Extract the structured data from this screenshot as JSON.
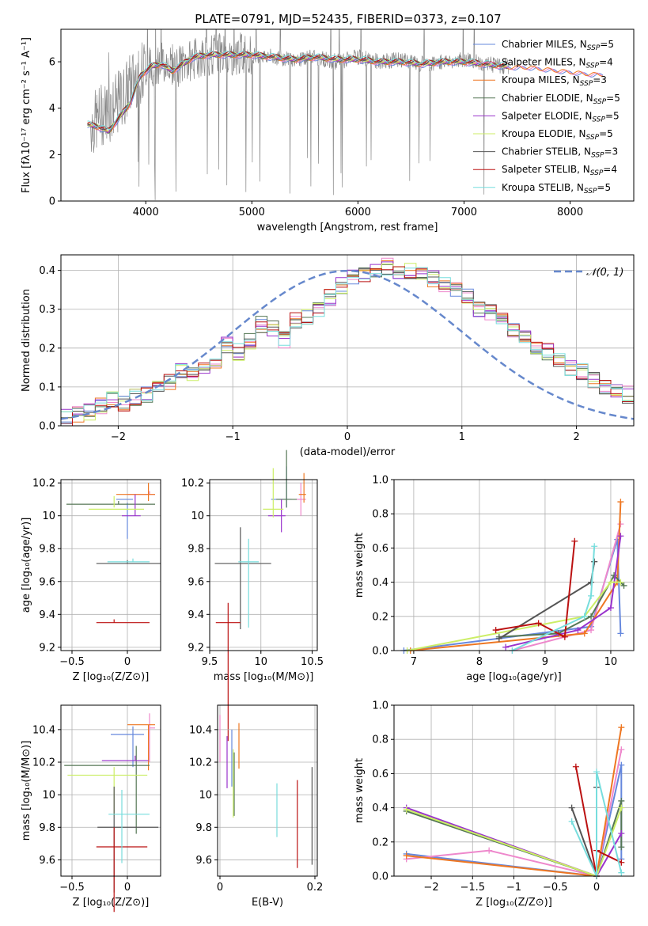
{
  "figure_title": "PLATE=0791, MJD=52435, FIBERID=0373, z=0.107",
  "models": [
    {
      "name": "Chabrier MILES",
      "nssp": "5",
      "color": "#6688dd"
    },
    {
      "name": "Salpeter MILES",
      "nssp": "4",
      "color": "#ee88cc"
    },
    {
      "name": "Kroupa MILES",
      "nssp": "3",
      "color": "#ee7722"
    },
    {
      "name": "Chabrier ELODIE",
      "nssp": "5",
      "color": "#557755"
    },
    {
      "name": "Salpeter ELODIE",
      "nssp": "5",
      "color": "#9933cc"
    },
    {
      "name": "Kroupa ELODIE",
      "nssp": "5",
      "color": "#ccee66"
    },
    {
      "name": "Chabrier STELIB",
      "nssp": "3",
      "color": "#555555"
    },
    {
      "name": "Salpeter STELIB",
      "nssp": "4",
      "color": "#bb1111"
    },
    {
      "name": "Kroupa STELIB",
      "nssp": "5",
      "color": "#77dddd"
    }
  ],
  "chart_data": [
    {
      "id": "spectrum",
      "type": "line",
      "xlabel": "wavelength [Angstrom, rest frame]",
      "ylabel": "Flux [fλ10⁻¹⁷ erg cm⁻² s⁻¹ A⁻¹]",
      "xlim": [
        3200,
        8600
      ],
      "ylim": [
        0,
        7.4
      ],
      "xticks": [
        4000,
        5000,
        6000,
        7000,
        8000
      ],
      "yticks": [
        0,
        2,
        4,
        6
      ],
      "legend": "top-right",
      "observed": {
        "color": "#888888",
        "x": [
          3500,
          3600,
          3700,
          3800,
          3900,
          4000,
          4100,
          4200,
          4300,
          4400,
          4500,
          4600,
          4700,
          4800,
          4900,
          5000,
          5200,
          5400,
          5600,
          5800,
          6000,
          6200,
          6400,
          6600,
          6800,
          7000,
          7200,
          7400,
          7600,
          7800,
          8000,
          8200,
          8300
        ],
        "y": [
          3.3,
          3.8,
          4.0,
          4.6,
          5.4,
          5.7,
          5.9,
          6.0,
          5.8,
          6.0,
          6.2,
          6.3,
          6.4,
          6.2,
          6.4,
          6.3,
          6.2,
          6.1,
          6.2,
          6.0,
          6.2,
          6.0,
          6.1,
          5.9,
          6.0,
          6.1,
          5.9,
          5.8,
          5.8,
          5.7,
          5.6,
          5.5,
          5.5
        ]
      },
      "model_curve": {
        "x": [
          3450,
          3550,
          3650,
          3750,
          3850,
          3950,
          4050,
          4150,
          4250,
          4350,
          4450,
          4600,
          4800,
          5000,
          5200,
          5400,
          5600,
          5800,
          6000,
          6200,
          6400,
          6600,
          6800,
          7000,
          7200,
          7400,
          7600,
          7800,
          8000,
          8200,
          8300
        ],
        "y": [
          3.3,
          3.2,
          3.0,
          3.6,
          4.2,
          5.4,
          5.8,
          5.9,
          5.6,
          5.9,
          6.2,
          6.3,
          6.3,
          6.3,
          6.2,
          6.1,
          6.2,
          6.1,
          6.1,
          6.0,
          6.0,
          5.9,
          6.0,
          6.0,
          5.9,
          5.8,
          5.8,
          5.7,
          5.6,
          5.5,
          5.5
        ]
      }
    },
    {
      "id": "residuals",
      "type": "line",
      "xlabel": "(data-model)/error",
      "ylabel": "Normed distribution",
      "xlim": [
        -2.5,
        2.5
      ],
      "ylim": [
        0,
        0.44
      ],
      "xticks": [
        -2,
        -1,
        0,
        1,
        2
      ],
      "yticks": [
        0.0,
        0.1,
        0.2,
        0.3,
        0.4
      ],
      "legend": "top-right",
      "legend_label": "𝒩(0, 1)",
      "gaussian": {
        "mean": 0,
        "sigma": 1,
        "color": "#6688cc",
        "style": "dashed"
      },
      "histogram": {
        "bin_width": 0.1,
        "start": -2.5,
        "values": [
          0.02,
          0.03,
          0.035,
          0.05,
          0.065,
          0.06,
          0.075,
          0.08,
          0.1,
          0.11,
          0.14,
          0.13,
          0.15,
          0.17,
          0.21,
          0.19,
          0.22,
          0.26,
          0.25,
          0.22,
          0.27,
          0.28,
          0.3,
          0.33,
          0.36,
          0.38,
          0.39,
          0.4,
          0.41,
          0.4,
          0.4,
          0.39,
          0.38,
          0.36,
          0.35,
          0.33,
          0.3,
          0.29,
          0.27,
          0.25,
          0.23,
          0.2,
          0.19,
          0.17,
          0.15,
          0.14,
          0.12,
          0.1,
          0.09,
          0.08
        ]
      }
    },
    {
      "id": "age_vs_Z",
      "type": "scatter",
      "xlabel": "Z [log₁₀(Z/Z⊙)]",
      "ylabel": "age  [log₁₀(age/yr)]",
      "xlim": [
        -0.6,
        0.3
      ],
      "ylim": [
        9.18,
        10.22
      ],
      "xticks": [
        -0.5,
        0.0
      ],
      "yticks": [
        9.2,
        9.4,
        9.6,
        9.8,
        10.0,
        10.2
      ],
      "points": [
        {
          "m": 0,
          "x": 0.0,
          "y": 10.1,
          "xe": [
            -0.1,
            0.0
          ],
          "ye": [
            10.06,
            9.86
          ]
        },
        {
          "m": 1,
          "x": 0.2,
          "y": 10.13,
          "xe": [
            0.0,
            0.0
          ],
          "ye": [
            10.13,
            10.13
          ]
        },
        {
          "m": 2,
          "x": 0.19,
          "y": 10.13,
          "xe": [
            -0.1,
            0.25
          ],
          "ye": [
            10.18,
            10.09
          ]
        },
        {
          "m": 3,
          "x": -0.08,
          "y": 10.07,
          "xe": [
            -0.55,
            0.25
          ],
          "ye": [
            10.07,
            10.07
          ]
        },
        {
          "m": 4,
          "x": 0.07,
          "y": 10.0,
          "xe": [
            -0.05,
            0.0
          ],
          "ye": [
            10.11,
            10.0
          ]
        },
        {
          "m": 5,
          "x": -0.12,
          "y": 10.04,
          "xe": [
            -0.35,
            0.15
          ],
          "ye": [
            10.1,
            10.05
          ]
        },
        {
          "m": 6,
          "x": 0.0,
          "y": 9.71,
          "xe": [
            -0.28,
            0.3
          ],
          "ye": [
            9.71,
            9.71
          ]
        },
        {
          "m": 7,
          "x": -0.12,
          "y": 9.35,
          "xe": [
            -0.28,
            0.2
          ],
          "ye": [
            9.35,
            9.35
          ]
        },
        {
          "m": 8,
          "x": 0.05,
          "y": 9.72,
          "xe": [
            -0.18,
            0.2
          ],
          "ye": [
            9.72,
            9.72
          ]
        }
      ]
    },
    {
      "id": "age_vs_mass",
      "type": "scatter",
      "xlabel": "mass [log₁₀(M/M⊙)]",
      "ylabel": "",
      "xlim": [
        9.5,
        10.55
      ],
      "ylim": [
        9.18,
        10.22
      ],
      "xticks": [
        9.5,
        10.0,
        10.5
      ],
      "yticks": [
        9.2,
        9.4,
        9.6,
        9.8,
        10.0,
        10.2
      ],
      "points": [
        {
          "m": 0,
          "x": 10.25,
          "y": 10.1,
          "xe": [
            0.15,
            0.05
          ],
          "ye": [
            0.05,
            0.2
          ]
        },
        {
          "m": 1,
          "x": 10.39,
          "y": 10.1,
          "xe": [
            0.05,
            0.05
          ],
          "ye": [
            0.1,
            0.1
          ]
        },
        {
          "m": 2,
          "x": 10.42,
          "y": 10.13,
          "xe": [
            0.05,
            0.02
          ],
          "ye": [
            0.05,
            0.13
          ]
        },
        {
          "m": 3,
          "x": 10.25,
          "y": 10.1,
          "xe": [
            0.1,
            0.1
          ],
          "ye": [
            0.05,
            0.3
          ]
        },
        {
          "m": 4,
          "x": 10.2,
          "y": 10.0,
          "xe": [
            0.13,
            0.04
          ],
          "ye": [
            0.1,
            0.1
          ]
        },
        {
          "m": 5,
          "x": 10.12,
          "y": 10.04,
          "xe": [
            0.1,
            0.1
          ],
          "ye": [
            0.05,
            0.25
          ]
        },
        {
          "m": 6,
          "x": 9.8,
          "y": 9.71,
          "xe": [
            0.25,
            0.3
          ],
          "ye": [
            0.4,
            0.22
          ]
        },
        {
          "m": 7,
          "x": 9.68,
          "y": 9.35,
          "xe": [
            0.12,
            0.12
          ],
          "ye": [
            0.72,
            0.12
          ]
        },
        {
          "m": 8,
          "x": 9.88,
          "y": 9.72,
          "xe": [
            0.1,
            0.1
          ],
          "ye": [
            0.4,
            0.14
          ]
        }
      ]
    },
    {
      "id": "weight_vs_age",
      "type": "line",
      "xlabel": "age  [log₁₀(age/yr)]",
      "ylabel": "mass weight",
      "xlim": [
        6.7,
        10.35
      ],
      "ylim": [
        0,
        1.0
      ],
      "xticks": [
        7,
        8,
        9,
        10
      ],
      "yticks": [
        0.0,
        0.2,
        0.4,
        0.6,
        0.8,
        1.0
      ],
      "series": [
        {
          "m": 0,
          "x": [
            6.85,
            9.7,
            10.1,
            10.15
          ],
          "y": [
            0.0,
            0.14,
            0.65,
            0.1
          ]
        },
        {
          "m": 1,
          "x": [
            8.5,
            9.7,
            10.15
          ],
          "y": [
            0.0,
            0.12,
            0.74
          ]
        },
        {
          "m": 2,
          "x": [
            6.95,
            9.6,
            10.1,
            10.15
          ],
          "y": [
            0.0,
            0.1,
            0.4,
            0.87
          ]
        },
        {
          "m": 3,
          "x": [
            8.3,
            9.2,
            9.7,
            10.05,
            10.2
          ],
          "y": [
            0.08,
            0.1,
            0.2,
            0.44,
            0.38
          ]
        },
        {
          "m": 4,
          "x": [
            8.4,
            9.5,
            10.0,
            10.15
          ],
          "y": [
            0.02,
            0.12,
            0.25,
            0.67
          ]
        },
        {
          "m": 5,
          "x": [
            6.9,
            9.6,
            10.0,
            10.15
          ],
          "y": [
            0.0,
            0.2,
            0.4,
            0.4
          ]
        },
        {
          "m": 6,
          "x": [
            8.3,
            9.7,
            9.75
          ],
          "y": [
            0.07,
            0.4,
            0.52
          ]
        },
        {
          "m": 7,
          "x": [
            8.25,
            8.9,
            9.3,
            9.45
          ],
          "y": [
            0.12,
            0.16,
            0.08,
            0.64
          ]
        },
        {
          "m": 8,
          "x": [
            8.5,
            9.6,
            9.7,
            9.75
          ],
          "y": [
            0.0,
            0.2,
            0.32,
            0.61
          ]
        }
      ]
    },
    {
      "id": "mass_vs_Z",
      "type": "scatter",
      "xlabel": "Z [log₁₀(Z/Z⊙)]",
      "ylabel": "mass [log₁₀(M/M⊙)]",
      "xlim": [
        -0.6,
        0.3
      ],
      "ylim": [
        9.5,
        10.55
      ],
      "xticks": [
        -0.5,
        0.0
      ],
      "yticks": [
        9.6,
        9.8,
        10.0,
        10.2,
        10.4
      ],
      "points": [
        {
          "m": 0,
          "x": 0.05,
          "y": 10.37,
          "xe": [
            0.2,
            0.1
          ],
          "ye": [
            0.05,
            0.2
          ]
        },
        {
          "m": 1,
          "x": 0.2,
          "y": 10.41,
          "xe": [
            0.0,
            0.05
          ],
          "ye": [
            0.09,
            0.21
          ]
        },
        {
          "m": 2,
          "x": 0.19,
          "y": 10.43,
          "xe": [
            0.19,
            0.06
          ],
          "ye": [
            0.0,
            0.28
          ]
        },
        {
          "m": 3,
          "x": 0.08,
          "y": 10.18,
          "xe": [
            0.65,
            0.12
          ],
          "ye": [
            0.12,
            0.42
          ]
        },
        {
          "m": 4,
          "x": 0.07,
          "y": 10.21,
          "xe": [
            0.3,
            0.12
          ],
          "ye": [
            0.03,
            0.0
          ]
        },
        {
          "m": 5,
          "x": -0.12,
          "y": 10.12,
          "xe": [
            0.42,
            0.3
          ],
          "ye": [
            0.05,
            0.25
          ]
        },
        {
          "m": 6,
          "x": -0.12,
          "y": 9.8,
          "xe": [
            0.15,
            0.4
          ],
          "ye": [
            0.25,
            0.4
          ]
        },
        {
          "m": 7,
          "x": -0.12,
          "y": 9.68,
          "xe": [
            0.16,
            0.3
          ],
          "ye": [
            0.12,
            0.4
          ]
        },
        {
          "m": 8,
          "x": -0.05,
          "y": 9.88,
          "xe": [
            0.12,
            0.25
          ],
          "ye": [
            0.15,
            0.3
          ]
        }
      ]
    },
    {
      "id": "mass_vs_ebv",
      "type": "scatter",
      "xlabel": "E(B-V)",
      "ylabel": "",
      "xlim": [
        -0.005,
        0.205
      ],
      "ylim": [
        9.5,
        10.55
      ],
      "xticks": [
        0.0,
        0.2
      ],
      "yticks": [
        9.6,
        9.8,
        10.0,
        10.2,
        10.4
      ],
      "points": [
        {
          "m": 0,
          "x": 0.025,
          "y": 10.3,
          "ye": [
            10.4,
            10.05
          ]
        },
        {
          "m": 1,
          "x": 0.0,
          "y": 10.3,
          "ye": [
            10.49,
            10.2
          ]
        },
        {
          "m": 2,
          "x": 0.04,
          "y": 10.3,
          "ye": [
            10.44,
            10.16
          ]
        },
        {
          "m": 3,
          "x": 0.03,
          "y": 10.1,
          "ye": [
            10.26,
            9.87
          ]
        },
        {
          "m": 4,
          "x": 0.015,
          "y": 10.2,
          "ye": [
            10.36,
            10.04
          ]
        },
        {
          "m": 5,
          "x": 0.028,
          "y": 10.1,
          "ye": [
            10.28,
            9.86
          ]
        },
        {
          "m": 6,
          "x": 0.194,
          "y": 9.8,
          "ye": [
            10.17,
            9.57
          ]
        },
        {
          "m": 7,
          "x": 0.163,
          "y": 9.8,
          "ye": [
            10.09,
            9.55
          ]
        },
        {
          "m": 8,
          "x": 0.12,
          "y": 9.9,
          "ye": [
            10.07,
            9.74
          ]
        }
      ]
    },
    {
      "id": "weight_vs_Z",
      "type": "line",
      "xlabel": "Z [log₁₀(Z/Z⊙)]",
      "ylabel": "mass weight",
      "xlim": [
        -2.45,
        0.45
      ],
      "ylim": [
        0,
        1.0
      ],
      "xticks": [
        -2.0,
        -1.5,
        -1.0,
        -0.5,
        0.0
      ],
      "yticks": [
        0.0,
        0.2,
        0.4,
        0.6,
        0.8,
        1.0
      ],
      "series": [
        {
          "m": 0,
          "x": [
            -2.3,
            0.0,
            0.3,
            0.3
          ],
          "y": [
            0.13,
            0.0,
            0.65,
            0.1
          ]
        },
        {
          "m": 1,
          "x": [
            -2.3,
            -1.3,
            0.0,
            0.3
          ],
          "y": [
            0.1,
            0.15,
            0.0,
            0.74
          ]
        },
        {
          "m": 2,
          "x": [
            -2.3,
            0.0,
            0.3
          ],
          "y": [
            0.12,
            0.0,
            0.87
          ]
        },
        {
          "m": 3,
          "x": [
            -2.3,
            0.0,
            0.3,
            0.3
          ],
          "y": [
            0.38,
            0.0,
            0.44,
            0.17
          ]
        },
        {
          "m": 4,
          "x": [
            -2.3,
            0.0,
            0.3
          ],
          "y": [
            0.4,
            0.0,
            0.25
          ]
        },
        {
          "m": 5,
          "x": [
            -2.3,
            0.0,
            0.3
          ],
          "y": [
            0.39,
            0.0,
            0.4
          ]
        },
        {
          "m": 6,
          "x": [
            -0.3,
            0.0,
            0.0
          ],
          "y": [
            0.4,
            0.0,
            0.52
          ]
        },
        {
          "m": 7,
          "x": [
            -0.25,
            0.0,
            0.0,
            0.3
          ],
          "y": [
            0.64,
            0.0,
            0.15,
            0.08
          ]
        },
        {
          "m": 8,
          "x": [
            -0.3,
            0.0,
            0.0,
            0.3
          ],
          "y": [
            0.32,
            0.0,
            0.61,
            0.02
          ]
        }
      ]
    }
  ]
}
